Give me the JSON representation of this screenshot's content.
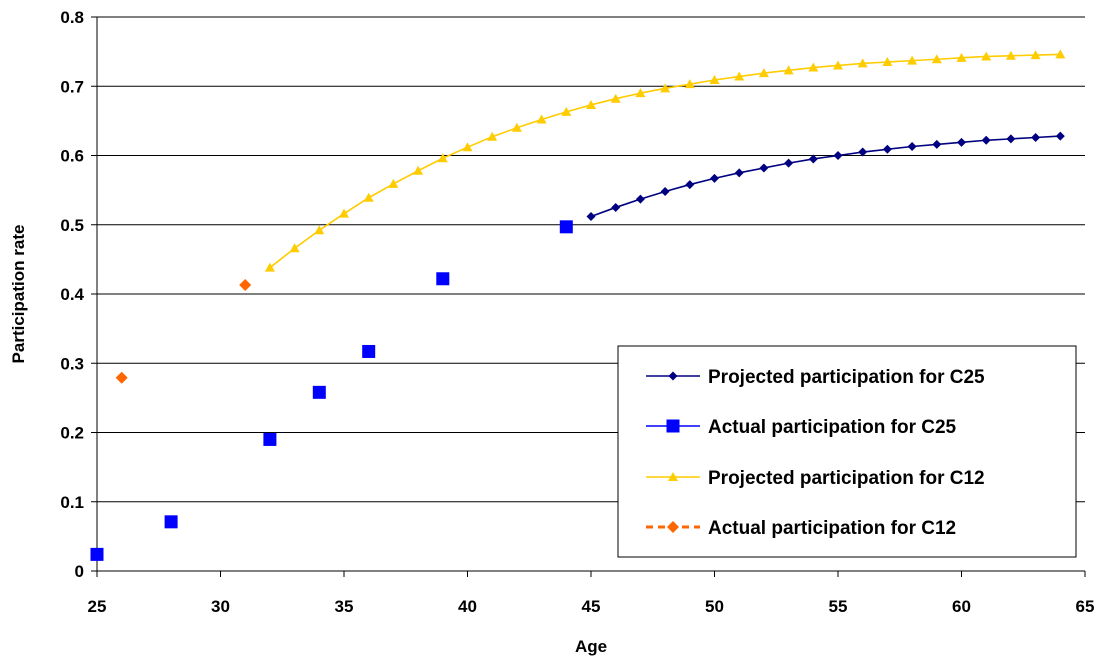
{
  "chart_data": {
    "type": "scatter",
    "title": "",
    "xlabel": "Age",
    "ylabel": "Participation rate",
    "xlim": [
      25,
      65
    ],
    "ylim": [
      0,
      0.8
    ],
    "x_ticks": [
      "25",
      "30",
      "35",
      "40",
      "45",
      "50",
      "55",
      "60",
      "65"
    ],
    "y_ticks": [
      "0",
      "0.1",
      "0.2",
      "0.3",
      "0.4",
      "0.5",
      "0.6",
      "0.7",
      "0.8"
    ],
    "grid": "horizontal",
    "legend_position": "bottom-right",
    "series": [
      {
        "name": "Projected participation for C25",
        "style": "line-diamond",
        "color": "#000080",
        "x": [
          45,
          46,
          47,
          48,
          49,
          50,
          51,
          52,
          53,
          54,
          55,
          56,
          57,
          58,
          59,
          60,
          61,
          62,
          63,
          64
        ],
        "y": [
          0.512,
          0.525,
          0.537,
          0.548,
          0.558,
          0.567,
          0.575,
          0.582,
          0.589,
          0.595,
          0.6,
          0.605,
          0.609,
          0.613,
          0.616,
          0.619,
          0.622,
          0.624,
          0.626,
          0.628
        ]
      },
      {
        "name": "Actual participation for C25",
        "style": "square-marker",
        "color": "#0000FF",
        "x": [
          25,
          28,
          32,
          34,
          36,
          39,
          44
        ],
        "y": [
          0.024,
          0.071,
          0.19,
          0.258,
          0.317,
          0.422,
          0.497
        ]
      },
      {
        "name": "Projected participation for C12",
        "style": "line-triangle",
        "color": "#FFCC00",
        "x": [
          32,
          33,
          34,
          35,
          36,
          37,
          38,
          39,
          40,
          41,
          42,
          43,
          44,
          45,
          46,
          47,
          48,
          49,
          50,
          51,
          52,
          53,
          54,
          55,
          56,
          57,
          58,
          59,
          60,
          61,
          62,
          63,
          64
        ],
        "y": [
          0.438,
          0.466,
          0.492,
          0.516,
          0.539,
          0.559,
          0.578,
          0.596,
          0.612,
          0.627,
          0.64,
          0.652,
          0.663,
          0.673,
          0.682,
          0.69,
          0.697,
          0.703,
          0.709,
          0.714,
          0.719,
          0.723,
          0.727,
          0.73,
          0.733,
          0.735,
          0.737,
          0.739,
          0.741,
          0.743,
          0.744,
          0.745,
          0.746
        ]
      },
      {
        "name": "Actual participation for C12",
        "style": "dashed-diamond",
        "color": "#FF6600",
        "x": [
          26,
          31
        ],
        "y": [
          0.279,
          0.413
        ]
      }
    ]
  }
}
